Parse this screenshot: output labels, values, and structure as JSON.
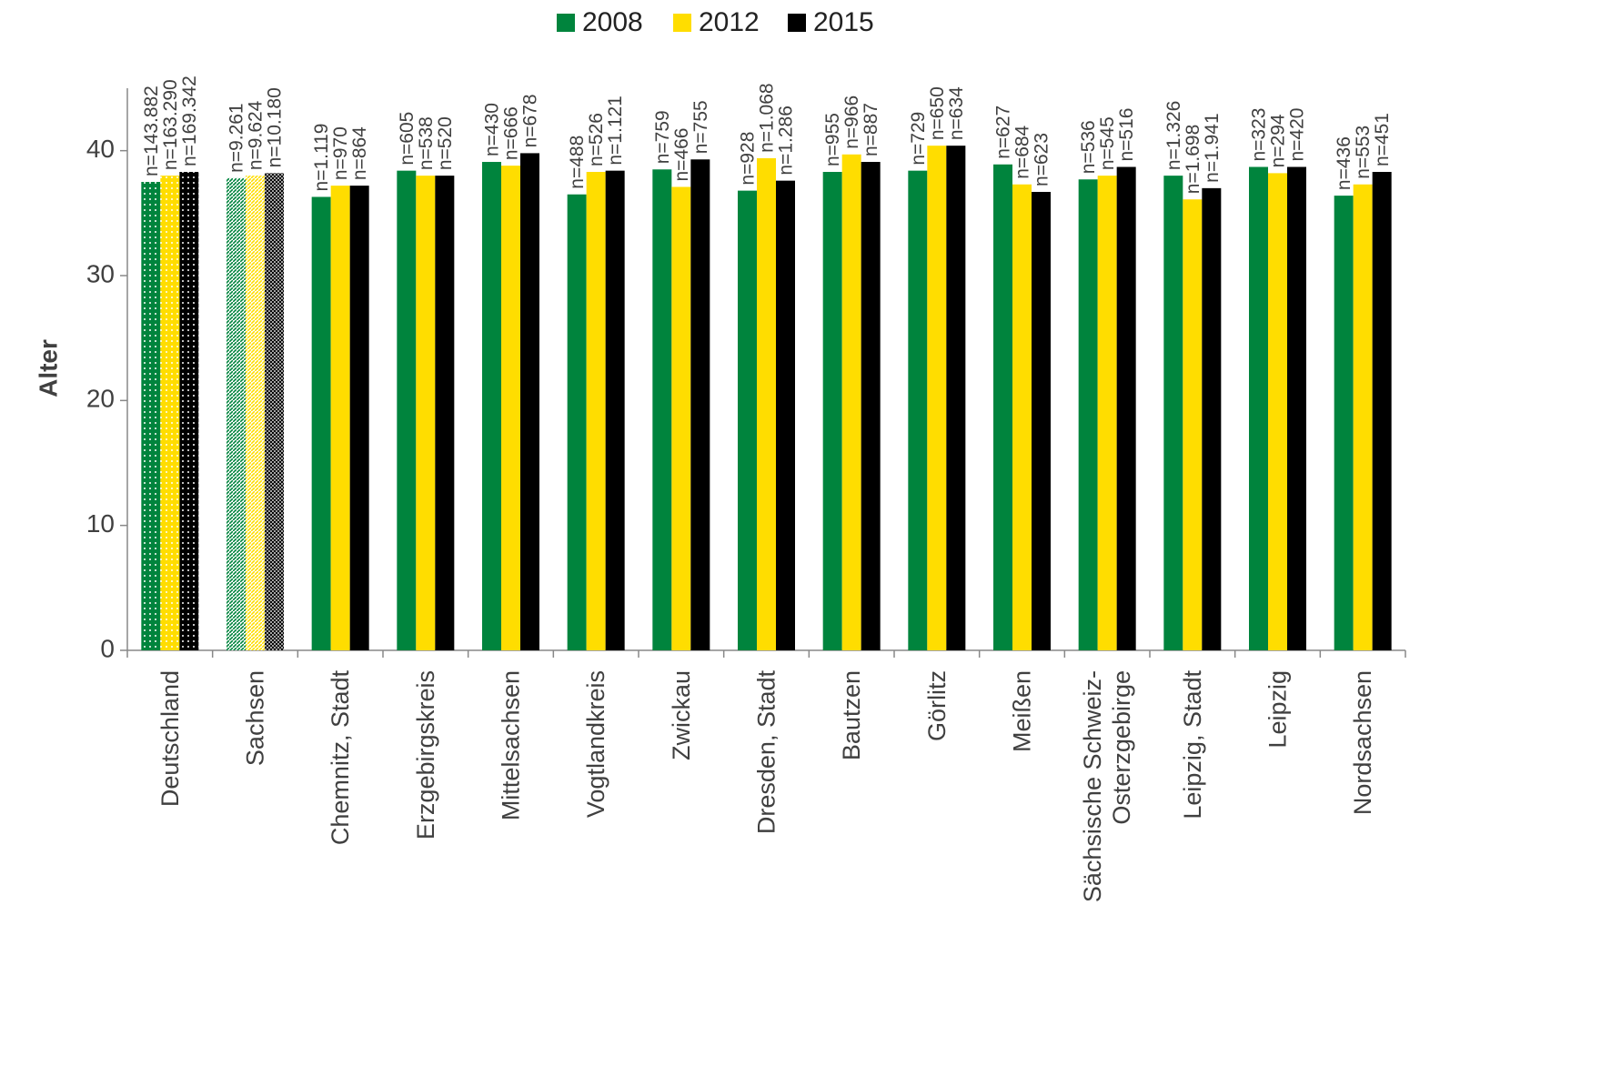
{
  "chart_data": {
    "type": "bar",
    "ylabel": "Alter",
    "categories": [
      "Deutschland",
      "Sachsen",
      "Chemnitz, Stadt",
      "Erzgebirgskreis",
      "Mittelsachsen",
      "Vogtlandkreis",
      "Zwickau",
      "Dresden, Stadt",
      "Bautzen",
      "Görlitz",
      "Meißen",
      "Sächsische Schweiz-\nOsterzgebirge",
      "Leipzig, Stadt",
      "Leipzig",
      "Nordsachsen"
    ],
    "series": [
      {
        "name": "2008",
        "color": "#00843d",
        "values": [
          37.5,
          37.8,
          36.3,
          38.4,
          39.1,
          36.5,
          38.5,
          36.8,
          38.3,
          38.4,
          38.9,
          37.7,
          38.0,
          38.7,
          36.4
        ],
        "n_labels": [
          "n=143.882",
          "n=9.261",
          "n=1.119",
          "n=605",
          "n=430",
          "n=488",
          "n=759",
          "n=928",
          "n=955",
          "n=729",
          "n=627",
          "n=536",
          "n=1.326",
          "n=323",
          "n=436"
        ]
      },
      {
        "name": "2012",
        "color": "#ffdd00",
        "values": [
          38.0,
          38.0,
          37.2,
          38.0,
          38.8,
          38.3,
          37.1,
          39.4,
          39.7,
          40.4,
          37.3,
          38.0,
          36.1,
          38.2,
          37.3
        ],
        "n_labels": [
          "n=163.290",
          "n=9.624",
          "n=970",
          "n=538",
          "n=666",
          "n=526",
          "n=466",
          "n=1.068",
          "n=966",
          "n=650",
          "n=684",
          "n=545",
          "n=1.698",
          "n=294",
          "n=553"
        ]
      },
      {
        "name": "2015",
        "color": "#000000",
        "values": [
          38.3,
          38.2,
          37.2,
          38.0,
          39.8,
          38.4,
          39.3,
          37.6,
          39.1,
          40.4,
          36.7,
          38.7,
          37.0,
          38.7,
          38.3
        ],
        "n_labels": [
          "n=169.342",
          "n=10.180",
          "n=864",
          "n=520",
          "n=678",
          "n=1.121",
          "n=755",
          "n=1.286",
          "n=887",
          "n=634",
          "n=623",
          "n=516",
          "n=1.941",
          "n=420",
          "n=451"
        ]
      }
    ],
    "ylim": [
      0,
      45
    ],
    "yticks": [
      0,
      10,
      20,
      30,
      40
    ],
    "grid": false,
    "legend": "top"
  }
}
